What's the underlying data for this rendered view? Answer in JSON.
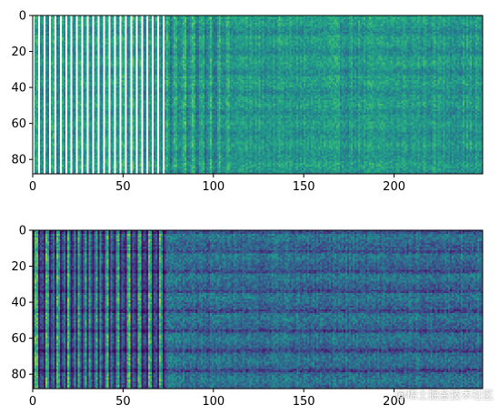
{
  "chart_data": [
    {
      "type": "heatmap",
      "name": "top",
      "x_ticks": [
        0,
        50,
        100,
        150,
        200
      ],
      "y_ticks": [
        0,
        20,
        40,
        60,
        80
      ],
      "xlim": [
        0,
        249
      ],
      "ylim": [
        88,
        0
      ],
      "rows": 88,
      "cols": 249,
      "colormap": "viridis",
      "missing_color": "#ffffff",
      "missing_columns_before_x": 75
    },
    {
      "type": "heatmap",
      "name": "bottom",
      "x_ticks": [
        0,
        50,
        100,
        150,
        200
      ],
      "y_ticks": [
        0,
        20,
        40,
        60,
        80
      ],
      "xlim": [
        0,
        249
      ],
      "ylim": [
        88,
        0
      ],
      "rows": 88,
      "cols": 249,
      "colormap": "viridis"
    }
  ],
  "watermark": "@稀土掘金技术社区"
}
